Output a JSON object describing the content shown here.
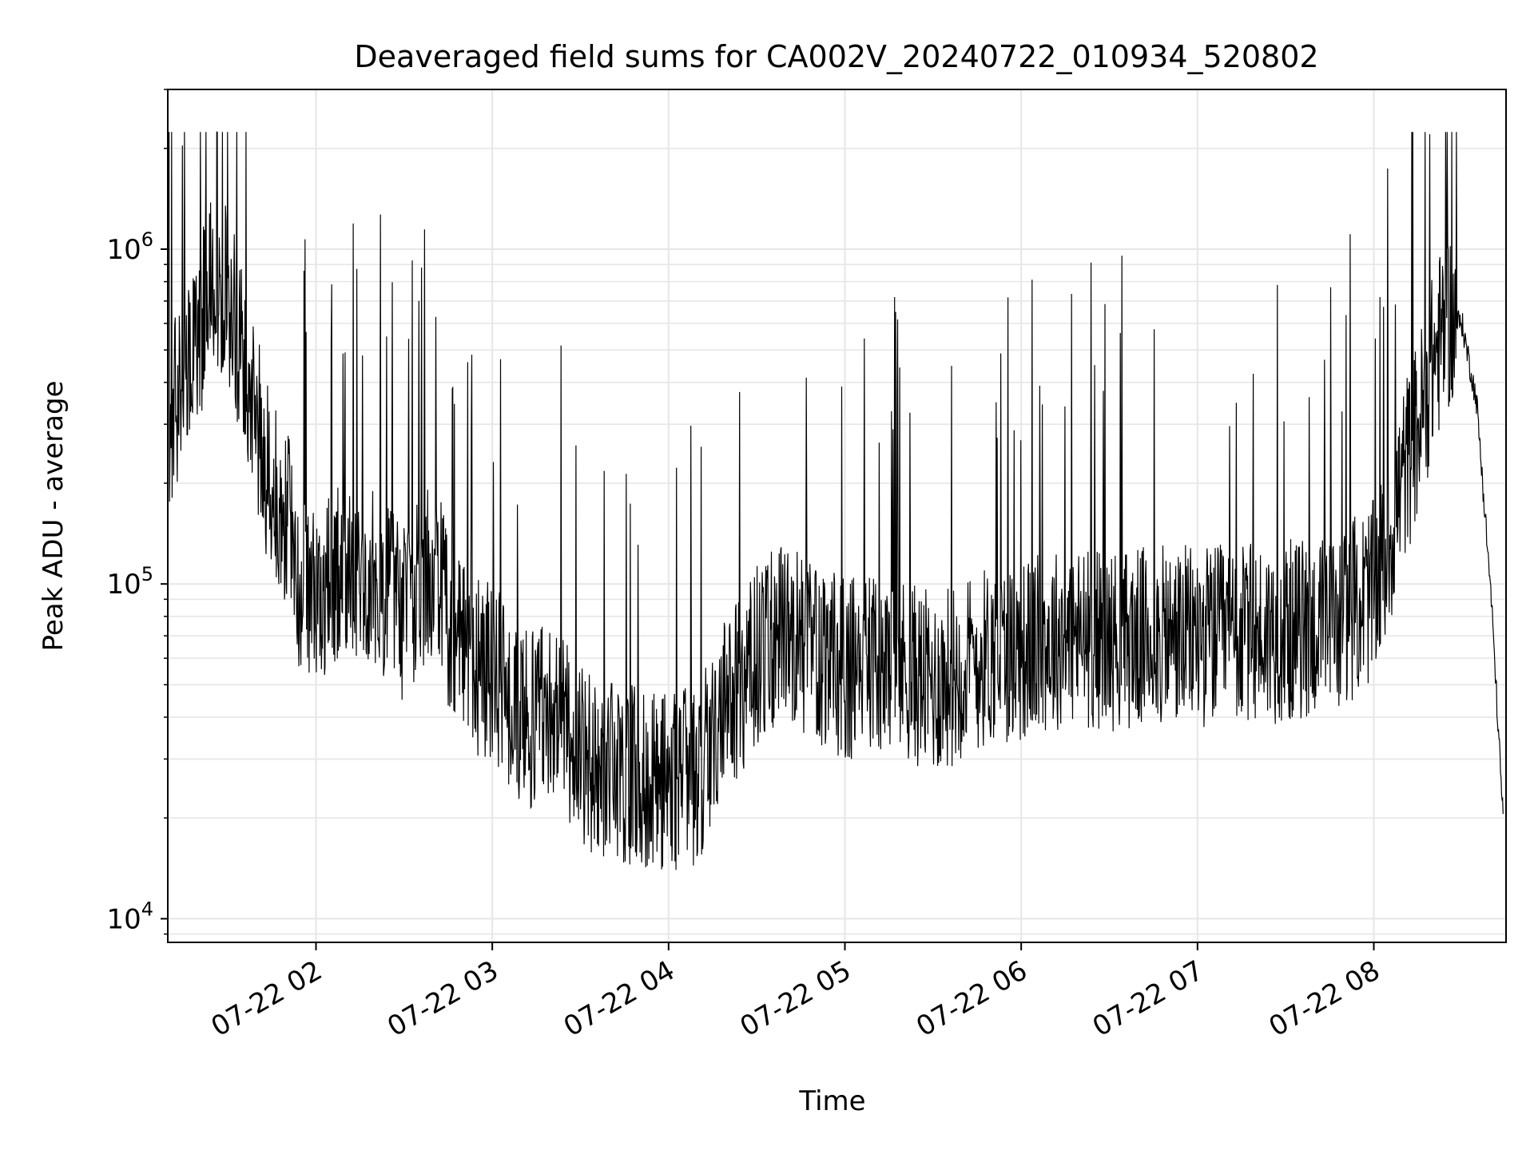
{
  "chart_data": {
    "type": "line",
    "title": "Deaveraged field sums for CA002V_20240722_010934_520802",
    "xlabel": "Time",
    "ylabel": "Peak ADU - average",
    "x_scale": "time",
    "y_scale": "log",
    "xlim": [
      "2024-07-22 01:09:34",
      "2024-07-22 08:45:00"
    ],
    "ylim": [
      8500,
      3000000
    ],
    "xticks": [
      "2024-07-22 02:00",
      "2024-07-22 03:00",
      "2024-07-22 04:00",
      "2024-07-22 05:00",
      "2024-07-22 06:00",
      "2024-07-22 07:00",
      "2024-07-22 08:00"
    ],
    "xtick_labels": [
      "07-22 02",
      "07-22 03",
      "07-22 04",
      "07-22 05",
      "07-22 06",
      "07-22 07",
      "07-22 08"
    ],
    "yticks": [
      10000,
      100000,
      1000000
    ],
    "ytick_labels": [
      {
        "base": "10",
        "exp": "4"
      },
      {
        "base": "10",
        "exp": "5"
      },
      {
        "base": "10",
        "exp": "6"
      }
    ],
    "grid": true,
    "line_color": "#000000",
    "grid_color": "#e6e6e6",
    "series": [
      {
        "x": [
          "2024-07-22 01:10",
          "2024-07-22 01:15",
          "2024-07-22 01:20",
          "2024-07-22 01:25",
          "2024-07-22 01:30",
          "2024-07-22 01:35",
          "2024-07-22 01:40",
          "2024-07-22 01:45",
          "2024-07-22 01:50",
          "2024-07-22 01:55",
          "2024-07-22 02:00",
          "2024-07-22 02:10",
          "2024-07-22 02:20",
          "2024-07-22 02:30",
          "2024-07-22 02:40",
          "2024-07-22 02:50",
          "2024-07-22 03:00",
          "2024-07-22 03:10",
          "2024-07-22 03:20",
          "2024-07-22 03:30",
          "2024-07-22 03:40",
          "2024-07-22 03:50",
          "2024-07-22 04:00",
          "2024-07-22 04:10",
          "2024-07-22 04:20",
          "2024-07-22 04:30",
          "2024-07-22 04:40",
          "2024-07-22 04:50",
          "2024-07-22 05:00",
          "2024-07-22 05:10",
          "2024-07-22 05:20",
          "2024-07-22 05:30",
          "2024-07-22 05:40",
          "2024-07-22 05:50",
          "2024-07-22 06:00",
          "2024-07-22 06:15",
          "2024-07-22 06:30",
          "2024-07-22 06:45",
          "2024-07-22 07:00",
          "2024-07-22 07:15",
          "2024-07-22 07:30",
          "2024-07-22 07:45",
          "2024-07-22 08:00",
          "2024-07-22 08:05",
          "2024-07-22 08:10",
          "2024-07-22 08:15",
          "2024-07-22 08:20",
          "2024-07-22 08:25",
          "2024-07-22 08:30",
          "2024-07-22 08:35",
          "2024-07-22 08:40",
          "2024-07-22 08:44"
        ],
        "y": [
          310000,
          420000,
          530000,
          900000,
          700000,
          480000,
          300000,
          190000,
          160000,
          95000,
          90000,
          120000,
          100000,
          80000,
          110000,
          60000,
          55000,
          38000,
          45000,
          30000,
          28000,
          26000,
          26000,
          27000,
          45000,
          60000,
          75000,
          62000,
          55000,
          58000,
          56000,
          50000,
          56000,
          62000,
          63000,
          70000,
          68000,
          69000,
          70000,
          70000,
          72000,
          75000,
          95000,
          130000,
          210000,
          290000,
          450000,
          620000,
          600000,
          350000,
          90000,
          20000
        ]
      }
    ]
  }
}
